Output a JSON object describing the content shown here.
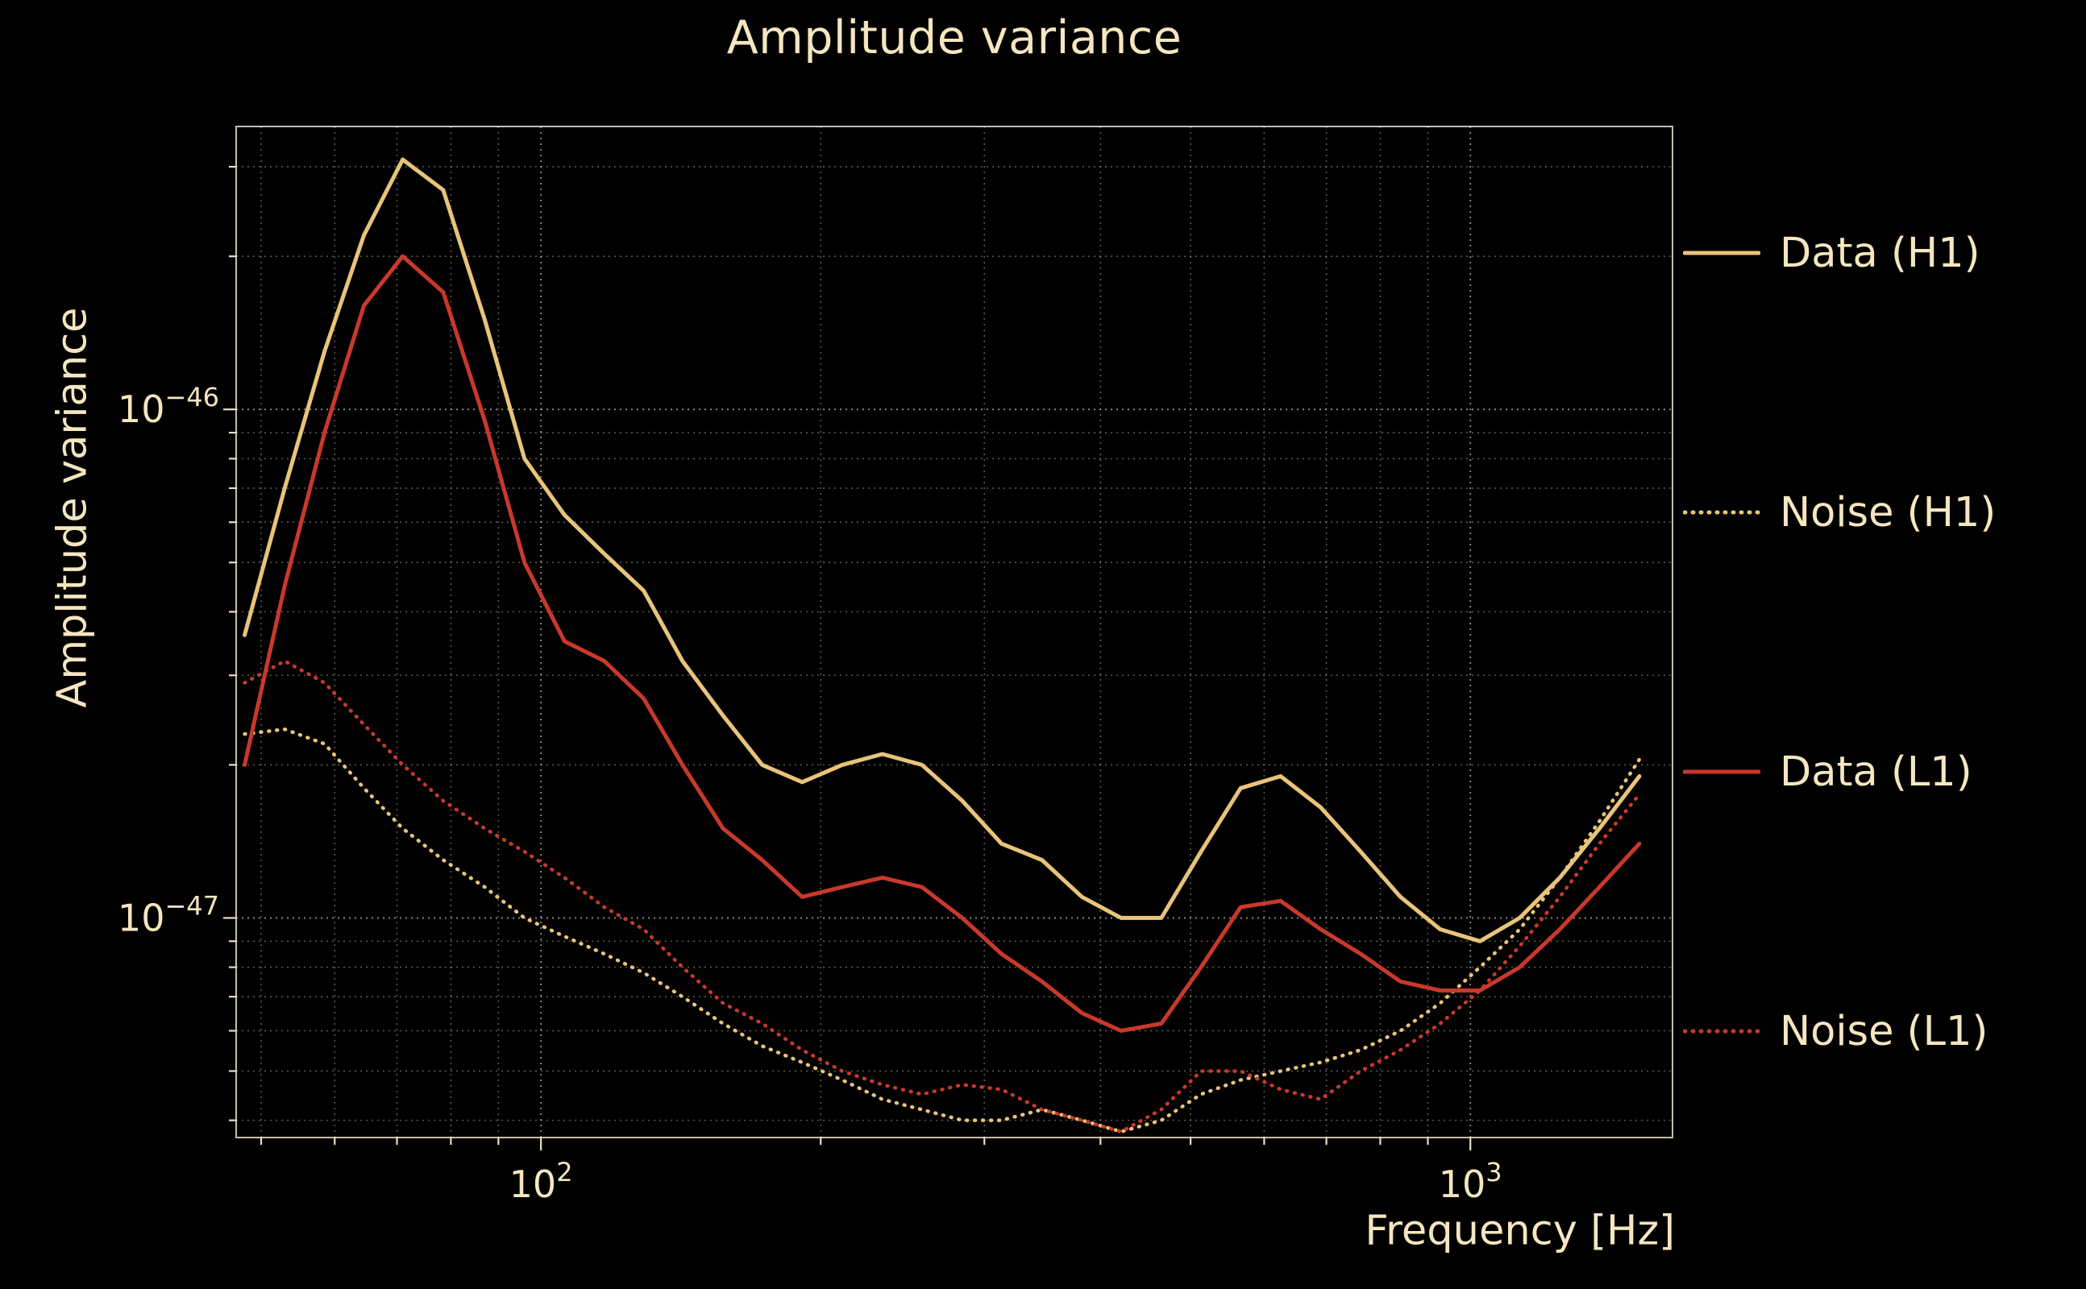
{
  "figure": {
    "title": "Amplitude variance",
    "xlabel": "Frequency [Hz]",
    "ylabel": "Amplitude variance",
    "background_color": "#000000",
    "text_color": "#f5e6c0",
    "grid_color": "#cdc4ae",
    "spine_color": "#e8dfca"
  },
  "legend": {
    "position": "right-outside",
    "items": [
      {
        "label": "Data (H1)",
        "color": "#e8c47a",
        "style": "solid"
      },
      {
        "label": "Noise (H1)",
        "color": "#e8c47a",
        "style": "dotted"
      },
      {
        "label": "Data (L1)",
        "color": "#c8392b",
        "style": "solid"
      },
      {
        "label": "Noise (L1)",
        "color": "#c8392b",
        "style": "dotted"
      }
    ]
  },
  "chart_data": {
    "type": "line",
    "title": "Amplitude variance",
    "xlabel": "Frequency [Hz]",
    "ylabel": "Amplitude variance",
    "x_scale": "log",
    "y_scale": "log",
    "xlim": [
      47,
      1650
    ],
    "ylim": [
      3.7e-48,
      3.6e-46
    ],
    "grid": "both major and minor, dotted",
    "legend_position": "right outside",
    "x_ticks": [
      {
        "value": 100,
        "mantissa": "10",
        "exponent": "2",
        "label": "10^2"
      },
      {
        "value": 1000,
        "mantissa": "10",
        "exponent": "3",
        "label": "10^3"
      }
    ],
    "y_ticks": [
      {
        "value": 1e-46,
        "mantissa": "10",
        "exponent": "−46",
        "label": "10^-46"
      },
      {
        "value": 1e-47,
        "mantissa": "10",
        "exponent": "−47",
        "label": "10^-47"
      }
    ],
    "x": [
      48,
      53,
      58.5,
      64.5,
      71,
      78.5,
      87,
      96,
      106,
      117,
      129,
      142,
      157,
      173,
      191,
      211,
      233,
      257,
      284,
      313,
      346,
      382,
      421,
      465,
      513,
      566,
      625,
      690,
      762,
      841,
      928,
      1024,
      1130,
      1248,
      1377,
      1520
    ],
    "series": [
      {
        "name": "Data (H1)",
        "color": "#e8c47a",
        "style": "solid",
        "values": [
          3.6e-47,
          7e-47,
          1.3e-46,
          2.2e-46,
          3.1e-46,
          2.7e-46,
          1.5e-46,
          8e-47,
          6.2e-47,
          5.2e-47,
          4.4e-47,
          3.2e-47,
          2.5e-47,
          2e-47,
          1.85e-47,
          2e-47,
          2.1e-47,
          2e-47,
          1.7e-47,
          1.4e-47,
          1.3e-47,
          1.1e-47,
          1e-47,
          1e-47,
          1.35e-47,
          1.8e-47,
          1.9e-47,
          1.65e-47,
          1.35e-47,
          1.1e-47,
          9.5e-48,
          9e-48,
          1e-47,
          1.2e-47,
          1.5e-47,
          1.9e-47
        ]
      },
      {
        "name": "Noise (H1)",
        "color": "#e8c47a",
        "style": "dotted",
        "values": [
          2.3e-47,
          2.35e-47,
          2.2e-47,
          1.8e-47,
          1.5e-47,
          1.3e-47,
          1.15e-47,
          1e-47,
          9.2e-48,
          8.5e-48,
          7.8e-48,
          7e-48,
          6.2e-48,
          5.6e-48,
          5.2e-48,
          4.8e-48,
          4.4e-48,
          4.2e-48,
          4e-48,
          4e-48,
          4.2e-48,
          4e-48,
          3.8e-48,
          4e-48,
          4.5e-48,
          4.8e-48,
          5e-48,
          5.2e-48,
          5.5e-48,
          6e-48,
          6.8e-48,
          8e-48,
          9.5e-48,
          1.2e-47,
          1.55e-47,
          2.05e-47
        ]
      },
      {
        "name": "Data (L1)",
        "color": "#c8392b",
        "style": "solid",
        "values": [
          2e-47,
          4.5e-47,
          9e-47,
          1.6e-46,
          2e-46,
          1.7e-46,
          9.5e-47,
          5e-47,
          3.5e-47,
          3.2e-47,
          2.7e-47,
          2e-47,
          1.5e-47,
          1.3e-47,
          1.1e-47,
          1.15e-47,
          1.2e-47,
          1.15e-47,
          1e-47,
          8.5e-48,
          7.5e-48,
          6.5e-48,
          6e-48,
          6.2e-48,
          8e-48,
          1.05e-47,
          1.08e-47,
          9.5e-48,
          8.5e-48,
          7.5e-48,
          7.2e-48,
          7.2e-48,
          8e-48,
          9.5e-48,
          1.15e-47,
          1.4e-47
        ]
      },
      {
        "name": "Noise (L1)",
        "color": "#c8392b",
        "style": "dotted",
        "values": [
          2.9e-47,
          3.2e-47,
          2.9e-47,
          2.4e-47,
          2e-47,
          1.7e-47,
          1.5e-47,
          1.35e-47,
          1.2e-47,
          1.05e-47,
          9.5e-48,
          8e-48,
          6.8e-48,
          6.2e-48,
          5.5e-48,
          5e-48,
          4.7e-48,
          4.5e-48,
          4.7e-48,
          4.6e-48,
          4.2e-48,
          4e-48,
          3.8e-48,
          4.2e-48,
          5e-48,
          5e-48,
          4.6e-48,
          4.4e-48,
          5e-48,
          5.5e-48,
          6.2e-48,
          7.2e-48,
          8.8e-48,
          1.1e-47,
          1.4e-47,
          1.75e-47
        ]
      }
    ]
  }
}
